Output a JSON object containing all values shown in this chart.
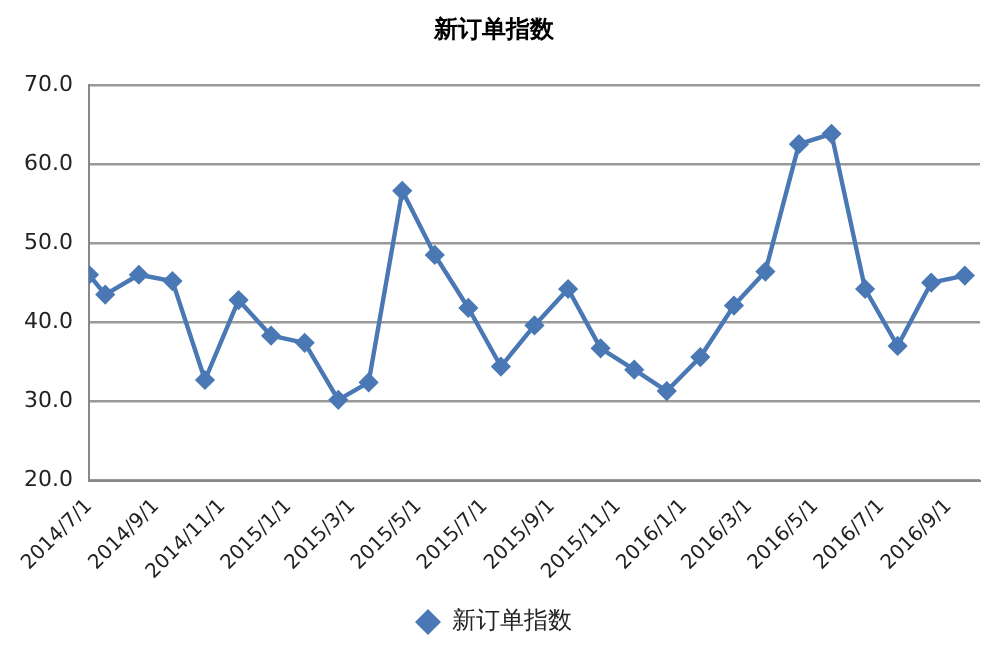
{
  "chart_data": {
    "type": "line",
    "title": "新订单指数",
    "x": [
      "2014-07-01",
      "2014-07-16",
      "2014-08-16",
      "2014-09-16",
      "2014-10-16",
      "2014-11-16",
      "2014-12-16",
      "2015-01-16",
      "2015-02-16",
      "2015-03-16",
      "2015-04-16",
      "2015-05-16",
      "2015-06-16",
      "2015-07-16",
      "2015-08-16",
      "2015-09-16",
      "2015-10-16",
      "2015-11-16",
      "2015-12-16",
      "2016-01-16",
      "2016-02-16",
      "2016-03-16",
      "2016-04-16",
      "2016-05-16",
      "2016-06-16",
      "2016-07-16",
      "2016-08-16",
      "2016-09-16"
    ],
    "series": [
      {
        "name": "新订单指数",
        "color": "#4a78b4",
        "values": [
          46.0,
          43.5,
          46.0,
          45.2,
          32.7,
          42.8,
          38.3,
          37.4,
          30.2,
          32.4,
          56.6,
          48.5,
          41.8,
          34.4,
          39.6,
          44.2,
          36.7,
          34.0,
          31.3,
          35.6,
          42.1,
          46.4,
          62.5,
          63.8,
          44.2,
          37.0,
          45.0,
          45.9
        ]
      }
    ],
    "xlim": [
      "2014-07-01",
      "2016-09-30"
    ],
    "xticks": [
      {
        "value": "2014-07-01",
        "label": "2014/7/1"
      },
      {
        "value": "2014-09-01",
        "label": "2014/9/1"
      },
      {
        "value": "2014-11-01",
        "label": "2014/11/1"
      },
      {
        "value": "2015-01-01",
        "label": "2015/1/1"
      },
      {
        "value": "2015-03-01",
        "label": "2015/3/1"
      },
      {
        "value": "2015-05-01",
        "label": "2015/5/1"
      },
      {
        "value": "2015-07-01",
        "label": "2015/7/1"
      },
      {
        "value": "2015-09-01",
        "label": "2015/9/1"
      },
      {
        "value": "2015-11-01",
        "label": "2015/11/1"
      },
      {
        "value": "2016-01-01",
        "label": "2016/1/1"
      },
      {
        "value": "2016-03-01",
        "label": "2016/3/1"
      },
      {
        "value": "2016-05-01",
        "label": "2016/5/1"
      },
      {
        "value": "2016-07-01",
        "label": "2016/7/1"
      },
      {
        "value": "2016-09-01",
        "label": "2016/9/1"
      }
    ],
    "ylim": [
      20,
      70
    ],
    "yticks": [
      {
        "value": 20,
        "label": "20.0"
      },
      {
        "value": 30,
        "label": "30.0"
      },
      {
        "value": 40,
        "label": "40.0"
      },
      {
        "value": 50,
        "label": "50.0"
      },
      {
        "value": 60,
        "label": "60.0"
      },
      {
        "value": 70,
        "label": "70.0"
      }
    ],
    "grid": "y",
    "legend": "bottom",
    "marker": "diamond",
    "line_style": "solid"
  }
}
